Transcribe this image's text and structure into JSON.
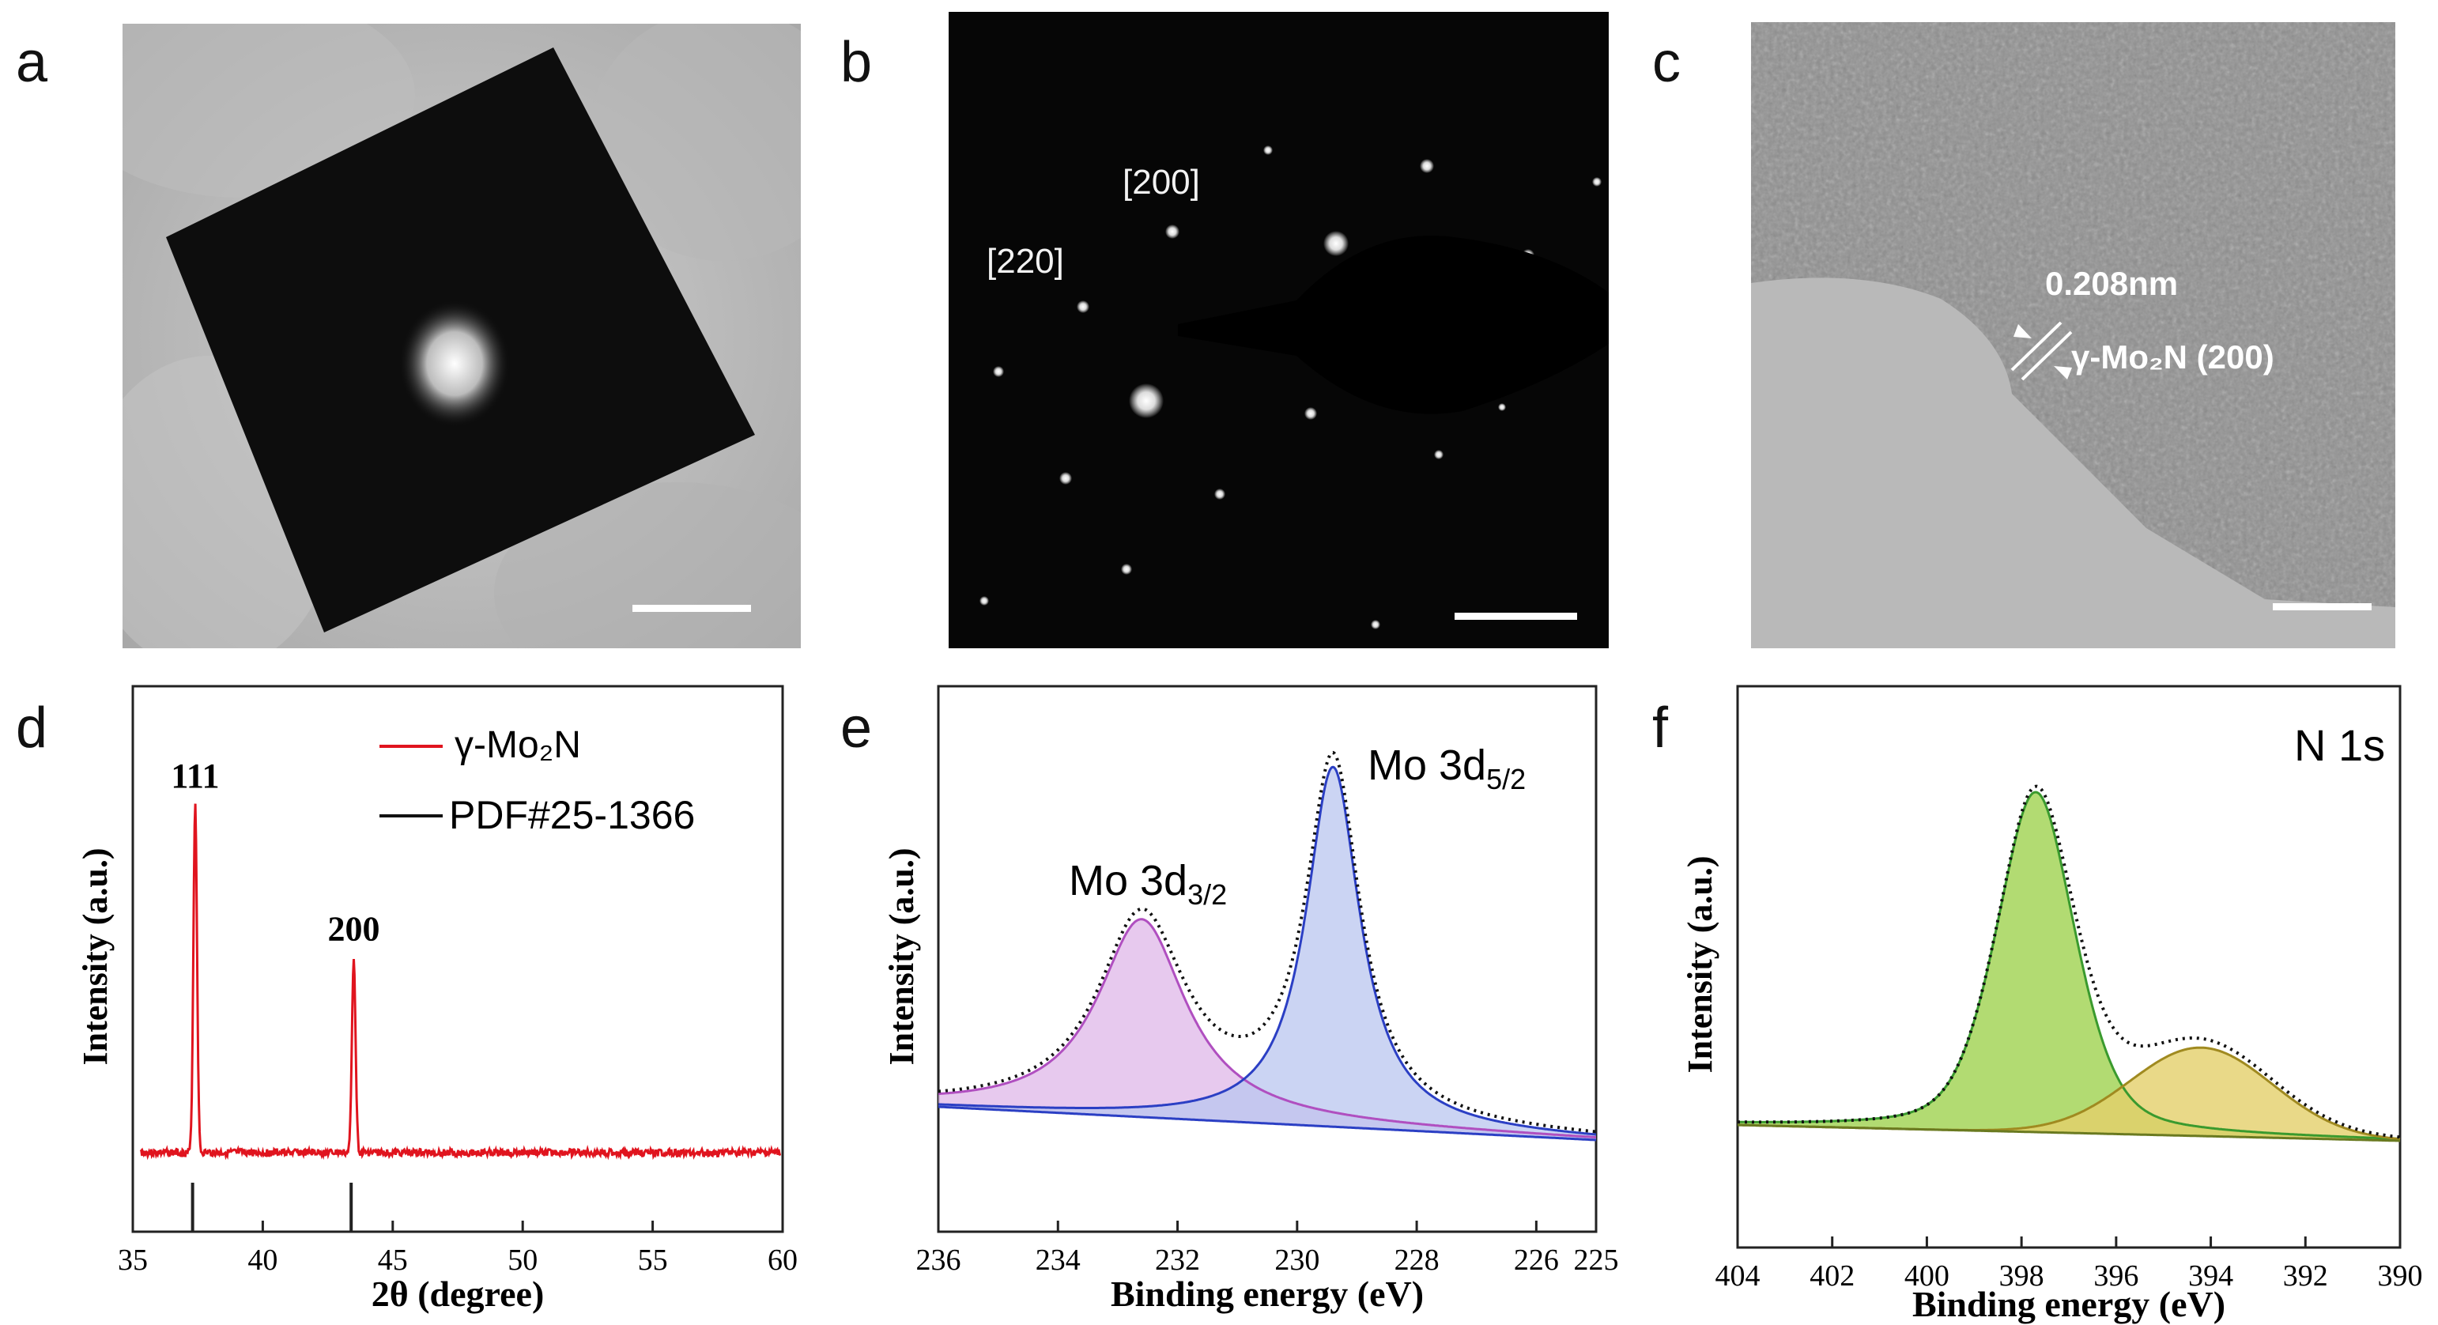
{
  "panels": {
    "a": {
      "letter": "a"
    },
    "b": {
      "letter": "b",
      "labels": {
        "spot_200": "[200]",
        "spot_220": "[220]"
      }
    },
    "c": {
      "letter": "c",
      "lattice_spacing": "0.208nm",
      "phase_label": "γ-Mo₂N (200)"
    },
    "d": {
      "letter": "d"
    },
    "e": {
      "letter": "e"
    },
    "f": {
      "letter": "f"
    }
  },
  "colors": {
    "xrd_line": "#e0141e",
    "mo52_fill": "#b9c6ef",
    "mo32_fill": "#dfb7e8",
    "n1s_main": "#9fd24f",
    "n1s_second": "#e3cf6a",
    "envelope": "#111111"
  },
  "chart_data": [
    {
      "id": "d",
      "type": "line",
      "title": "",
      "xlabel": "2θ (degree)",
      "ylabel": "Intensity (a.u.)",
      "xlim": [
        35,
        60
      ],
      "xticks": [
        35,
        40,
        45,
        50,
        55,
        60
      ],
      "grid": false,
      "legend": {
        "position": "top-right",
        "entries": [
          {
            "label": "γ-Mo₂N",
            "style": "red-line"
          },
          {
            "label": "PDF#25-1366",
            "style": "black-line"
          }
        ]
      },
      "series": [
        {
          "name": "γ-Mo₂N",
          "peaks": [
            {
              "x": 37.4,
              "height": 1.0
            },
            {
              "x": 43.5,
              "height": 0.56
            }
          ]
        },
        {
          "name": "PDF#25-1366",
          "reference_lines": [
            37.3,
            43.4
          ]
        }
      ],
      "annotations": [
        {
          "x": 37.4,
          "text": "111"
        },
        {
          "x": 43.5,
          "text": "200"
        }
      ]
    },
    {
      "id": "e",
      "type": "line",
      "title": "",
      "xlabel": "Binding energy (eV)",
      "ylabel": "Intensity (a.u.)",
      "xlim": [
        236,
        225
      ],
      "xticks": [
        236,
        234,
        232,
        230,
        228,
        226,
        225
      ],
      "grid": false,
      "series": [
        {
          "name": "Mo 3d3/2",
          "center": 232.6,
          "height": 0.55,
          "width": 0.9
        },
        {
          "name": "Mo 3d5/2",
          "center": 229.4,
          "height": 1.0,
          "width": 0.55
        }
      ],
      "annotations": [
        {
          "text": "Mo 3d",
          "sub": "3/2",
          "near": 232.6
        },
        {
          "text": "Mo 3d",
          "sub": "5/2",
          "near": 229.4
        }
      ]
    },
    {
      "id": "f",
      "type": "line",
      "title": "N 1s",
      "xlabel": "Binding energy (eV)",
      "ylabel": "Intensity (a.u.)",
      "xlim": [
        404,
        390
      ],
      "xticks": [
        404,
        402,
        400,
        398,
        396,
        394,
        392,
        390
      ],
      "grid": false,
      "series": [
        {
          "name": "N 1s main",
          "center": 397.7,
          "height": 1.0,
          "width": 0.85
        },
        {
          "name": "N 1s second",
          "center": 394.2,
          "height": 0.26,
          "width": 1.5
        }
      ]
    }
  ]
}
